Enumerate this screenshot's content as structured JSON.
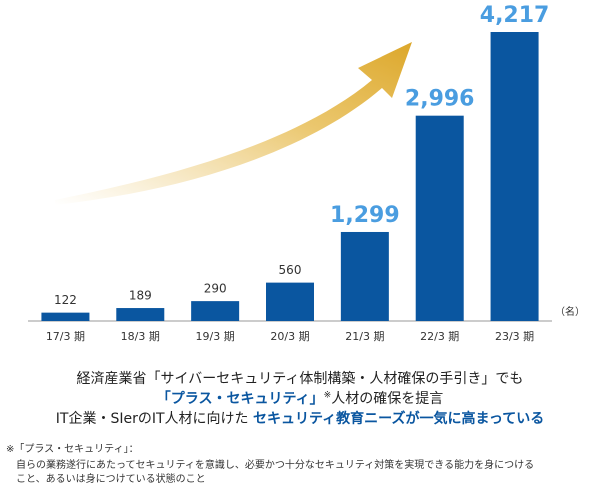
{
  "chart_data": {
    "type": "bar",
    "categories": [
      "17/3 期",
      "18/3 期",
      "19/3 期",
      "20/3 期",
      "21/3 期",
      "22/3 期",
      "23/3 期"
    ],
    "values": [
      122,
      189,
      290,
      560,
      1299,
      2996,
      4217
    ],
    "value_labels": [
      "122",
      "189",
      "290",
      "560",
      "1,299",
      "2,996",
      "4,217"
    ],
    "unit": "（名）",
    "color": "#0a56a0"
  },
  "caption": {
    "lines": [
      [
        "経済産業省「サイバーセキュリティ体制構築・人材確保の手引き」でも"
      ],
      [
        "「プラス・セキュリティ」",
        "※",
        "人材の確保を提言"
      ],
      [
        "IT企業・SIerのIT人材に向けた ",
        "セキュリティ教育ニーズが一気に高まっている"
      ]
    ]
  },
  "footnote": {
    "title": "※「プラス・セキュリティ」：",
    "lines": [
      "自らの業務遂行にあたってセキュリティを意識し、必要かつ十分なセキュリティ対策を実現できる能力を身につける",
      "こと、あるいは身につけている状態のこと"
    ]
  }
}
